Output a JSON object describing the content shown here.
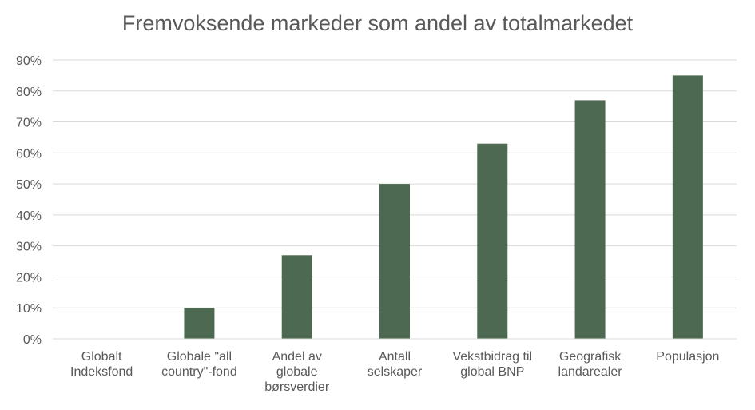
{
  "chart_data": {
    "type": "bar",
    "title": "Fremvoksende markeder som andel av totalmarkedet",
    "xlabel": "",
    "ylabel": "",
    "ylim": [
      0,
      90
    ],
    "yticks": [
      "0%",
      "10%",
      "20%",
      "30%",
      "40%",
      "50%",
      "60%",
      "70%",
      "80%",
      "90%"
    ],
    "grid": true,
    "legend": "none",
    "bar_color": "#4e6951",
    "categories": [
      [
        "Globalt",
        "Indeksfond"
      ],
      [
        "Globale \"all",
        "country\"-fond"
      ],
      [
        "Andel av",
        "globale",
        "børsverdier"
      ],
      [
        "Antall",
        "selskaper"
      ],
      [
        "Vekstbidrag til",
        "global BNP"
      ],
      [
        "Geografisk",
        "landarealer"
      ],
      [
        "Populasjon"
      ]
    ],
    "values": [
      0,
      10,
      27,
      50,
      63,
      77,
      85
    ]
  }
}
